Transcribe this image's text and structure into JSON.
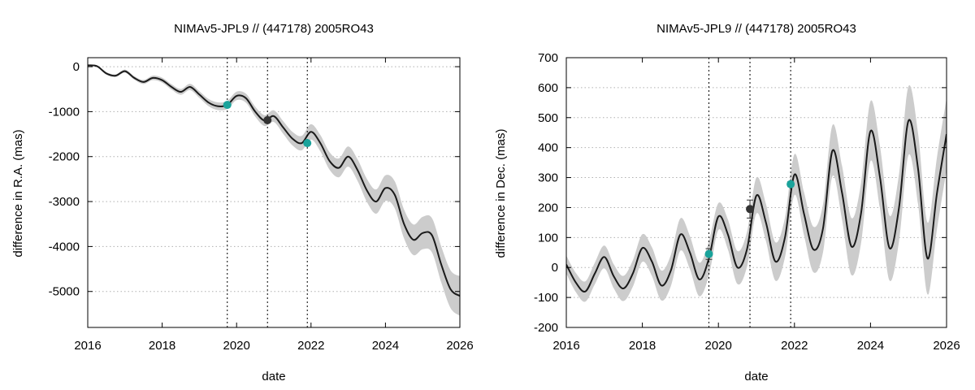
{
  "chart_data": [
    {
      "type": "line",
      "title": "NIMAv5-JPL9 // (447178) 2005RO43",
      "xlabel": "date",
      "ylabel": "difference in R.A. (mas)",
      "xlim": [
        2016,
        2026
      ],
      "ylim": [
        -5800,
        200
      ],
      "xticks": [
        2016,
        2018,
        2020,
        2022,
        2024,
        2026
      ],
      "yticks": [
        0,
        -1000,
        -2000,
        -3000,
        -4000,
        -5000
      ],
      "grid": true,
      "band_color": "#cccccc",
      "line_color": "#1a1a1a",
      "vlines": [
        2019.75,
        2020.83,
        2021.9
      ],
      "series": [
        {
          "name": "difference",
          "x": [
            2016.0,
            2016.25,
            2016.5,
            2016.75,
            2017.0,
            2017.25,
            2017.5,
            2017.75,
            2018.0,
            2018.25,
            2018.5,
            2018.75,
            2019.0,
            2019.25,
            2019.5,
            2019.75,
            2020.0,
            2020.25,
            2020.5,
            2020.75,
            2021.0,
            2021.25,
            2021.5,
            2021.75,
            2022.0,
            2022.25,
            2022.5,
            2022.75,
            2023.0,
            2023.25,
            2023.5,
            2023.75,
            2024.0,
            2024.25,
            2024.5,
            2024.75,
            2025.0,
            2025.25,
            2025.5,
            2025.75,
            2026.0
          ],
          "y": [
            30,
            10,
            -150,
            -200,
            -100,
            -250,
            -340,
            -250,
            -300,
            -450,
            -560,
            -450,
            -620,
            -800,
            -880,
            -850,
            -650,
            -700,
            -1000,
            -1200,
            -1100,
            -1350,
            -1600,
            -1700,
            -1450,
            -1700,
            -2100,
            -2250,
            -2000,
            -2300,
            -2750,
            -3000,
            -2700,
            -2850,
            -3500,
            -3850,
            -3700,
            -3750,
            -4400,
            -4950,
            -5100
          ],
          "uncertainty": [
            10,
            20,
            30,
            30,
            35,
            40,
            45,
            50,
            55,
            60,
            65,
            70,
            75,
            80,
            85,
            90,
            95,
            100,
            110,
            120,
            130,
            140,
            150,
            160,
            170,
            180,
            195,
            210,
            225,
            240,
            255,
            270,
            285,
            300,
            320,
            340,
            360,
            380,
            400,
            420,
            440
          ]
        }
      ],
      "observations": [
        {
          "x": 2019.75,
          "y": -850,
          "color": "#1aa39b"
        },
        {
          "x": 2020.83,
          "y": -1190,
          "color": "#333333"
        },
        {
          "x": 2021.9,
          "y": -1700,
          "color": "#1aa39b"
        }
      ]
    },
    {
      "type": "line",
      "title": "NIMAv5-JPL9 // (447178) 2005RO43",
      "xlabel": "date",
      "ylabel": "difference in Dec. (mas)",
      "xlim": [
        2016,
        2026
      ],
      "ylim": [
        -200,
        700
      ],
      "xticks": [
        2016,
        2018,
        2020,
        2022,
        2024,
        2026
      ],
      "yticks": [
        700,
        600,
        500,
        400,
        300,
        200,
        100,
        0,
        -100,
        -200
      ],
      "grid": true,
      "band_color": "#cccccc",
      "line_color": "#1a1a1a",
      "vlines": [
        2019.75,
        2020.83,
        2021.9
      ],
      "series": [
        {
          "name": "difference",
          "x": [
            2016.0,
            2016.25,
            2016.5,
            2016.75,
            2017.0,
            2017.25,
            2017.5,
            2017.75,
            2018.0,
            2018.25,
            2018.5,
            2018.75,
            2019.0,
            2019.25,
            2019.5,
            2019.75,
            2020.0,
            2020.25,
            2020.5,
            2020.75,
            2021.0,
            2021.25,
            2021.5,
            2021.75,
            2022.0,
            2022.25,
            2022.5,
            2022.75,
            2023.0,
            2023.25,
            2023.5,
            2023.75,
            2024.0,
            2024.25,
            2024.5,
            2024.75,
            2025.0,
            2025.25,
            2025.5,
            2025.75,
            2026.0
          ],
          "y": [
            10,
            -50,
            -80,
            -20,
            35,
            -30,
            -70,
            -20,
            65,
            20,
            -60,
            -10,
            110,
            50,
            -40,
            30,
            170,
            110,
            0,
            60,
            240,
            150,
            20,
            100,
            310,
            180,
            60,
            130,
            390,
            250,
            70,
            180,
            455,
            300,
            65,
            200,
            490,
            330,
            30,
            250,
            445
          ],
          "uncertainty": [
            30,
            32,
            34,
            36,
            38,
            40,
            42,
            44,
            46,
            48,
            50,
            52,
            54,
            55,
            56,
            57,
            45,
            50,
            55,
            58,
            60,
            62,
            64,
            66,
            68,
            72,
            76,
            80,
            85,
            90,
            95,
            100,
            100,
            104,
            108,
            112,
            115,
            118,
            120,
            120,
            120
          ]
        }
      ],
      "observations": [
        {
          "x": 2019.75,
          "y": 45,
          "err": 18,
          "color": "#1aa39b"
        },
        {
          "x": 2020.83,
          "y": 195,
          "err": 30,
          "color": "#333333"
        },
        {
          "x": 2021.9,
          "y": 278,
          "err": 8,
          "color": "#1aa39b"
        }
      ]
    }
  ]
}
